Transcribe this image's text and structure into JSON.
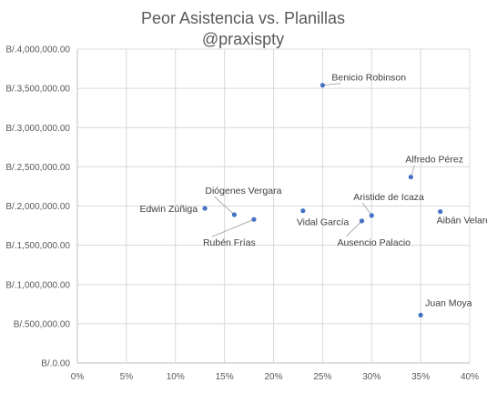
{
  "chart_data": {
    "type": "scatter",
    "title": "Peor Asistencia vs. Planillas",
    "subtitle": "@praxispty",
    "xlabel": "",
    "ylabel": "",
    "xlim": [
      0,
      0.4
    ],
    "ylim": [
      0,
      4000000
    ],
    "grid": true,
    "legend": "none",
    "x_ticks": [
      0,
      0.05,
      0.1,
      0.15,
      0.2,
      0.25,
      0.3,
      0.35,
      0.4
    ],
    "x_tick_labels": [
      "0%",
      "5%",
      "10%",
      "15%",
      "20%",
      "25%",
      "30%",
      "35%",
      "40%"
    ],
    "y_ticks": [
      0,
      500000,
      1000000,
      1500000,
      2000000,
      2500000,
      3000000,
      3500000,
      4000000
    ],
    "y_tick_labels": [
      "B/.0.00",
      "B/.500,000.00",
      "B/.1,000,000.00",
      "B/.1,500,000.00",
      "B/.2,000,000.00",
      "B/.2,500,000.00",
      "B/.3,000,000.00",
      "B/.3,500,000.00",
      "B/.4,000,000.00"
    ],
    "colors": {
      "marker": "#4472C4",
      "grid": "#d9d9d9",
      "axis": "#bfbfbf",
      "leader": "#a6a6a6"
    },
    "points": [
      {
        "label": "Benicio Robinson",
        "x": 0.25,
        "y": 3540000
      },
      {
        "label": "Alfredo Pérez",
        "x": 0.34,
        "y": 2370000
      },
      {
        "label": "Aibán Velarde",
        "x": 0.37,
        "y": 1930000
      },
      {
        "label": "Aristide de Icaza",
        "x": 0.3,
        "y": 1880000
      },
      {
        "label": "Ausencio Palacio",
        "x": 0.29,
        "y": 1810000
      },
      {
        "label": "Vidal García",
        "x": 0.23,
        "y": 1940000
      },
      {
        "label": "Diógenes Vergara",
        "x": 0.16,
        "y": 1890000
      },
      {
        "label": "Rubén Frías",
        "x": 0.18,
        "y": 1830000
      },
      {
        "label": "Edwin Zúñiga",
        "x": 0.13,
        "y": 1970000
      },
      {
        "label": "Juan Moya",
        "x": 0.35,
        "y": 610000
      }
    ]
  }
}
